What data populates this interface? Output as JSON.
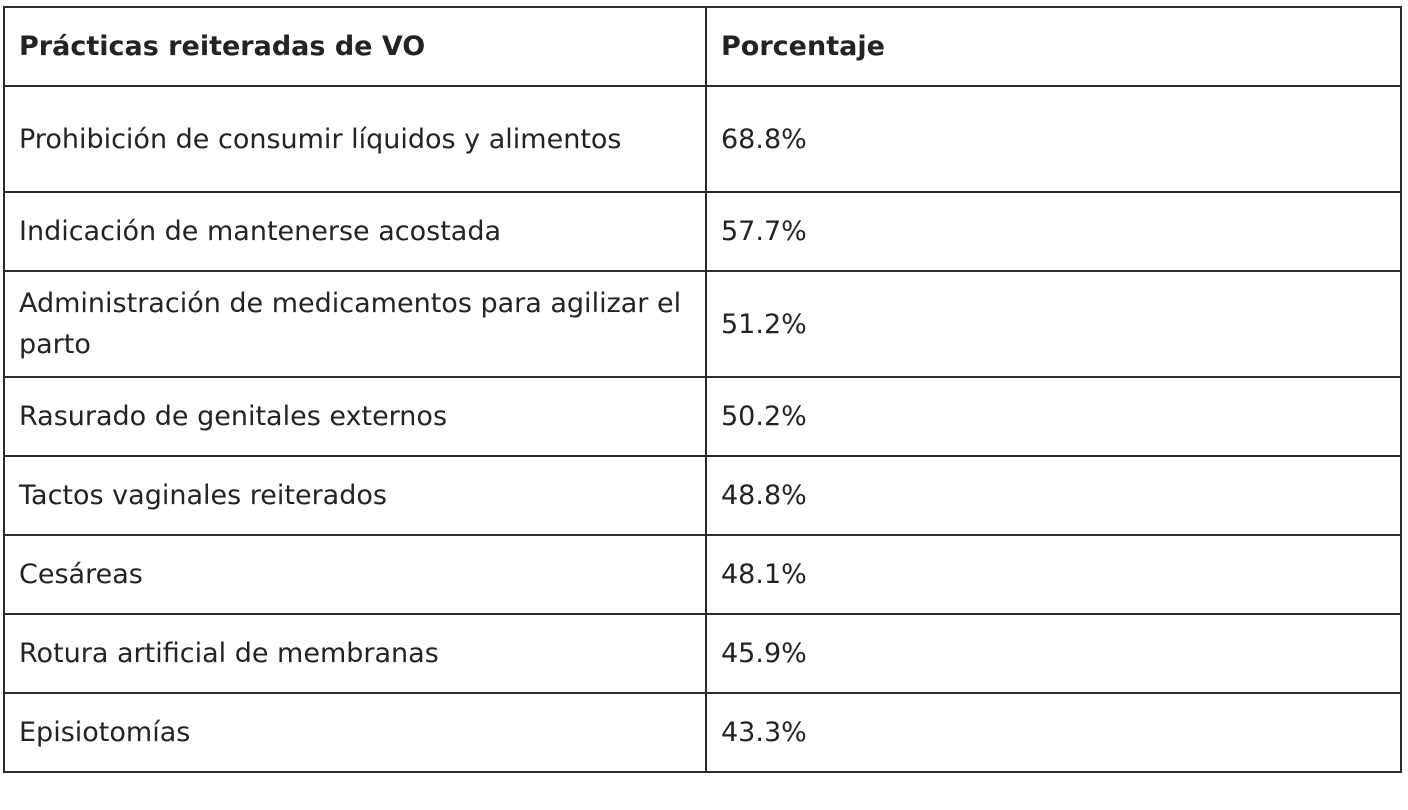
{
  "table": {
    "headers": [
      "Prácticas reiteradas de VO",
      "Porcentaje"
    ],
    "rows": [
      [
        "Prohibición de consumir líquidos y alimentos",
        "68.8%"
      ],
      [
        "Indicación de mantenerse acostada",
        "57.7%"
      ],
      [
        "Administración de medicamentos para agilizar el parto",
        "51.2%"
      ],
      [
        "Rasurado de genitales externos",
        "50.2%"
      ],
      [
        "Tactos vaginales reiterados",
        "48.8%"
      ],
      [
        "Cesáreas",
        "48.1%"
      ],
      [
        "Rotura artificial de membranas",
        "45.9%"
      ],
      [
        "Episiotomías",
        "43.3%"
      ]
    ]
  }
}
